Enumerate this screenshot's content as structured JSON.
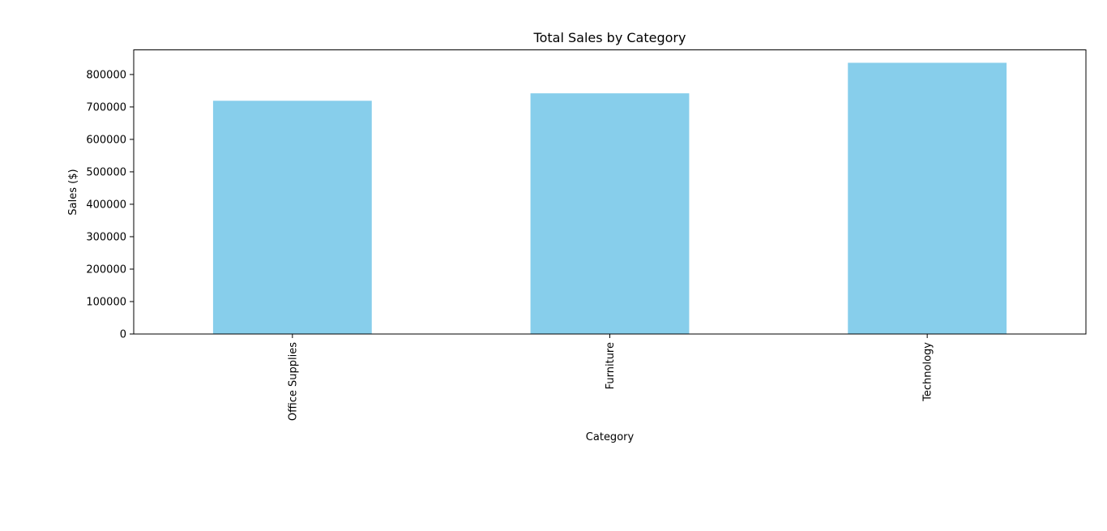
{
  "chart_data": {
    "type": "bar",
    "title": "Total Sales by Category",
    "xlabel": "Category",
    "ylabel": "Sales ($)",
    "categories": [
      "Office Supplies",
      "Furniture",
      "Technology"
    ],
    "values": [
      719047,
      741999,
      836154
    ],
    "ylim": [
      0,
      876000
    ],
    "yticks": [
      0,
      100000,
      200000,
      300000,
      400000,
      500000,
      600000,
      700000,
      800000
    ],
    "ytick_labels": [
      "0",
      "100000",
      "200000",
      "300000",
      "400000",
      "500000",
      "600000",
      "700000",
      "800000"
    ],
    "bar_color": "#87ceeb",
    "grid": false,
    "legend": "none"
  }
}
